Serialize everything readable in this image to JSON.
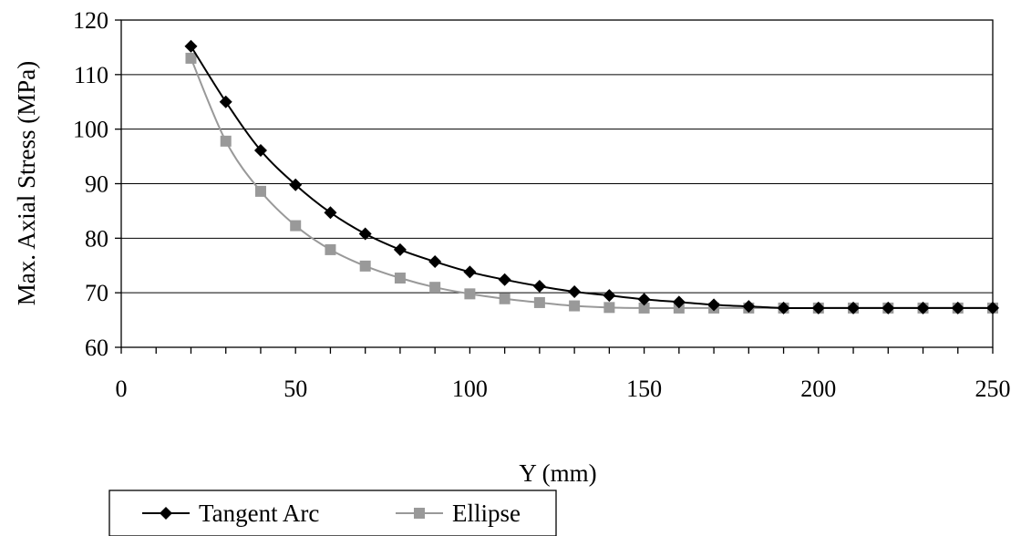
{
  "chart_data": {
    "type": "line",
    "xlabel": "Y (mm)",
    "ylabel": "Max. Axial Stress (MPa)",
    "xlim": [
      0,
      250
    ],
    "ylim": [
      60,
      120
    ],
    "x_ticks": [
      0,
      50,
      100,
      150,
      200,
      250
    ],
    "y_ticks": [
      60,
      70,
      80,
      90,
      100,
      110,
      120
    ],
    "x_minor_step": 10,
    "grid": "horizontal major",
    "legend_position": "bottom-left",
    "x": [
      20,
      30,
      40,
      50,
      60,
      70,
      80,
      90,
      100,
      110,
      120,
      130,
      140,
      150,
      160,
      170,
      180,
      190,
      200,
      210,
      220,
      230,
      240,
      250
    ],
    "series": [
      {
        "name": "Tangent Arc",
        "color": "#000000",
        "marker": "diamond",
        "values": [
          115.2,
          105.0,
          96.1,
          89.8,
          84.7,
          80.8,
          77.9,
          75.7,
          73.8,
          72.4,
          71.2,
          70.2,
          69.5,
          68.8,
          68.3,
          67.8,
          67.5,
          67.2,
          67.2,
          67.2,
          67.2,
          67.2,
          67.2,
          67.2
        ]
      },
      {
        "name": "Ellipse",
        "color": "#999999",
        "marker": "square",
        "values": [
          113.0,
          97.8,
          88.6,
          82.3,
          77.9,
          74.9,
          72.7,
          71.0,
          69.8,
          68.9,
          68.2,
          67.6,
          67.3,
          67.2,
          67.2,
          67.2,
          67.2,
          67.2,
          67.2,
          67.2,
          67.2,
          67.2,
          67.2,
          67.2
        ]
      }
    ]
  }
}
